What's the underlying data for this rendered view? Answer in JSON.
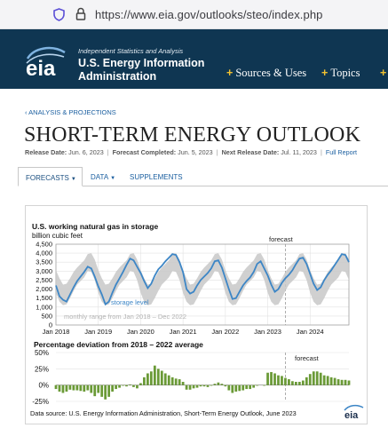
{
  "browser": {
    "url": "https://www.eia.gov/outlooks/steo/index.php"
  },
  "header": {
    "logo_text": "eia",
    "tagline": "Independent Statistics and Analysis",
    "agency_line1": "U.S. Energy Information",
    "agency_line2": "Administration",
    "nav": [
      "Sources & Uses",
      "Topics",
      "G"
    ]
  },
  "breadcrumb": "‹ ANALYSIS & PROJECTIONS",
  "page_title": "SHORT-TERM ENERGY OUTLOOK",
  "release": {
    "release_label": "Release Date:",
    "release_date": "Jun. 6, 2023",
    "completed_label": "Forecast Completed:",
    "completed_date": "Jun. 5, 2023",
    "next_label": "Next Release Date:",
    "next_date": "Jul. 11, 2023",
    "full_report": "Full Report"
  },
  "tabs": [
    "FORECASTS",
    "DATA",
    "SUPPLEMENTS"
  ],
  "carousel": {
    "count": 4,
    "active": 4
  },
  "colors": {
    "header_bg": "#0f3652",
    "accent": "#f2c230",
    "line": "#3d86c6",
    "band": "#c8c8c8",
    "bar": "#6a9a36"
  },
  "chart_data": [
    {
      "type": "line",
      "title": "U.S. working natural gas in storage",
      "ylabel": "billion cubic feet",
      "ylim": [
        0,
        4500
      ],
      "yticks": [
        "0",
        "500",
        "1,000",
        "1,500",
        "2,000",
        "2,500",
        "3,000",
        "3,500",
        "4,000",
        "4,500"
      ],
      "xticks": [
        "Jan 2018",
        "Jan 2019",
        "Jan 2020",
        "Jan 2021",
        "Jan 2022",
        "Jan 2023",
        "Jan 2024"
      ],
      "forecast_label": "forecast",
      "forecast_start": "Jun 2023",
      "series_label": "storage level",
      "band_label": "monthly range from Jan 2018 – Dec 2022",
      "grid": true,
      "x": [
        "2018-01",
        "2018-02",
        "2018-03",
        "2018-04",
        "2018-05",
        "2018-06",
        "2018-07",
        "2018-08",
        "2018-09",
        "2018-10",
        "2018-11",
        "2018-12",
        "2019-01",
        "2019-02",
        "2019-03",
        "2019-04",
        "2019-05",
        "2019-06",
        "2019-07",
        "2019-08",
        "2019-09",
        "2019-10",
        "2019-11",
        "2019-12",
        "2020-01",
        "2020-02",
        "2020-03",
        "2020-04",
        "2020-05",
        "2020-06",
        "2020-07",
        "2020-08",
        "2020-09",
        "2020-10",
        "2020-11",
        "2020-12",
        "2021-01",
        "2021-02",
        "2021-03",
        "2021-04",
        "2021-05",
        "2021-06",
        "2021-07",
        "2021-08",
        "2021-09",
        "2021-10",
        "2021-11",
        "2021-12",
        "2022-01",
        "2022-02",
        "2022-03",
        "2022-04",
        "2022-05",
        "2022-06",
        "2022-07",
        "2022-08",
        "2022-09",
        "2022-10",
        "2022-11",
        "2022-12",
        "2023-01",
        "2023-02",
        "2023-03",
        "2023-04",
        "2023-05",
        "2023-06",
        "2023-07",
        "2023-08",
        "2023-09",
        "2023-10",
        "2023-11",
        "2023-12",
        "2024-01",
        "2024-02",
        "2024-03",
        "2024-04",
        "2024-05",
        "2024-06",
        "2024-07",
        "2024-08",
        "2024-09",
        "2024-10",
        "2024-11",
        "2024-12"
      ],
      "storage": [
        2200,
        1600,
        1400,
        1300,
        1700,
        2100,
        2450,
        2700,
        2950,
        3250,
        3150,
        2700,
        2150,
        1700,
        1150,
        1300,
        1800,
        2250,
        2600,
        2950,
        3350,
        3700,
        3600,
        3250,
        2900,
        2450,
        2050,
        2300,
        2750,
        3100,
        3300,
        3550,
        3750,
        3950,
        3900,
        3500,
        2950,
        2000,
        1750,
        1850,
        2200,
        2500,
        2700,
        2900,
        3150,
        3550,
        3600,
        3200,
        2600,
        2000,
        1450,
        1500,
        1850,
        2200,
        2450,
        2650,
        2950,
        3400,
        3550,
        3150,
        2750,
        2250,
        1850,
        2000,
        2350,
        2600,
        2800,
        3050,
        3400,
        3700,
        3750,
        3400,
        2850,
        2300,
        1950,
        2100,
        2500,
        2800,
        3050,
        3350,
        3650,
        3950,
        3900,
        3500
      ],
      "range_low": [
        1800,
        1300,
        1100,
        1150,
        1500,
        1900,
        2250,
        2450,
        2650,
        3000,
        2950,
        2500,
        1800,
        1300,
        1100,
        1150,
        1500,
        1900,
        2250,
        2450,
        2650,
        3000,
        2950,
        2500,
        1800,
        1300,
        1100,
        1150,
        1500,
        1900,
        2250,
        2450,
        2650,
        3000,
        2950,
        2500,
        1800,
        1300,
        1100,
        1150,
        1500,
        1900,
        2250,
        2450,
        2650,
        3000,
        2950,
        2500,
        1800,
        1300,
        1100,
        1150,
        1500,
        1900,
        2250,
        2450,
        2650,
        3000,
        2950,
        2500,
        1800,
        1300,
        1100,
        1150,
        1500,
        1900,
        2250,
        2450,
        2650,
        3000,
        2950,
        2500,
        1800,
        1300,
        1100,
        1150,
        1500,
        1900,
        2250,
        2450,
        2650,
        3000,
        2950,
        2500
      ],
      "range_high": [
        3050,
        2600,
        2250,
        2300,
        2600,
        2950,
        3200,
        3400,
        3600,
        3950,
        4000,
        3650,
        3050,
        2600,
        2250,
        2300,
        2600,
        2950,
        3200,
        3400,
        3600,
        3950,
        4000,
        3650,
        3050,
        2600,
        2250,
        2300,
        2600,
        2950,
        3200,
        3400,
        3600,
        3950,
        4000,
        3650,
        3050,
        2600,
        2250,
        2300,
        2600,
        2950,
        3200,
        3400,
        3600,
        3950,
        4000,
        3650,
        3050,
        2600,
        2250,
        2300,
        2600,
        2950,
        3200,
        3400,
        3600,
        3950,
        4000,
        3650,
        3050,
        2600,
        2250,
        2300,
        2600,
        2950,
        3200,
        3400,
        3600,
        3950,
        4000,
        3650,
        3050,
        2600,
        2250,
        2300,
        2600,
        2950,
        3200,
        3400,
        3600,
        3950,
        4000,
        3650
      ]
    },
    {
      "type": "bar",
      "title": "Percentage deviation from 2018 – 2022 average",
      "ylim": [
        -25,
        50
      ],
      "yticks": [
        "50%",
        "25%",
        "0%",
        "-25%"
      ],
      "forecast_label": "forecast",
      "values": [
        -6,
        -10,
        -12,
        -10,
        -7,
        -8,
        -8,
        -9,
        -10,
        -8,
        -12,
        -17,
        -12,
        -18,
        -22,
        -18,
        -10,
        -6,
        -4,
        -1,
        -2,
        1,
        -3,
        -5,
        3,
        12,
        18,
        21,
        30,
        25,
        22,
        18,
        15,
        12,
        10,
        9,
        5,
        -7,
        -7,
        -5,
        -4,
        -2,
        -2,
        -3,
        -1,
        2,
        4,
        2,
        -2,
        -8,
        -12,
        -10,
        -9,
        -8,
        -6,
        -6,
        -4,
        -1,
        0,
        -1,
        19,
        20,
        18,
        15,
        14,
        11,
        9,
        6,
        5,
        5,
        7,
        12,
        17,
        21,
        21,
        19,
        15,
        14,
        12,
        11,
        9,
        8,
        8,
        7
      ]
    }
  ],
  "source_note": "Data source: U.S. Energy Information Administration, Short-Term Energy Outlook, June 2023",
  "footer_logo": "eia"
}
